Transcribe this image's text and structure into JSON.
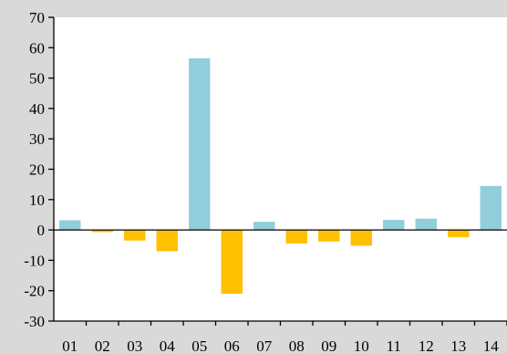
{
  "chart_data": {
    "type": "bar",
    "categories": [
      "01",
      "02",
      "03",
      "04",
      "05",
      "06",
      "07",
      "08",
      "09",
      "10",
      "11",
      "12",
      "13",
      "14"
    ],
    "values": [
      3.2,
      -0.7,
      -3.5,
      -7.0,
      56.5,
      -21.0,
      2.7,
      -4.5,
      -3.8,
      -5.2,
      3.3,
      3.7,
      -2.4,
      14.5
    ],
    "ylim": [
      -30,
      70
    ],
    "yticks": [
      "-30",
      "-20",
      "-10",
      "0",
      "10",
      "20",
      "30",
      "40",
      "50",
      "60",
      "70"
    ],
    "title": "",
    "xlabel": "",
    "ylabel": "",
    "grid": false,
    "colors": {
      "positive": "#92cddc",
      "negative": "#ffc000",
      "plot_background": "#ffffff",
      "page_background": "#d9d9d9",
      "axis": "#000000"
    }
  }
}
